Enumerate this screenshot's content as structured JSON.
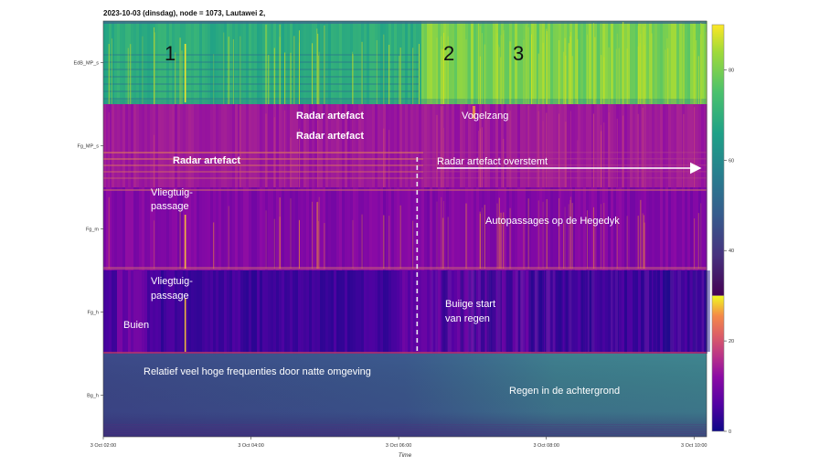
{
  "chart_data": {
    "type": "heatmap",
    "title": "2023-10-03 (dinsdag), node = 1073, Lautawei 2,",
    "xlabel": "Time",
    "ylabel": "",
    "x_ticks": [
      "3 Oct 02:00",
      "3 Oct 04:00",
      "3 Oct 06:00",
      "3 Oct 08:00",
      "3 Oct 10:00"
    ],
    "x_range_hours": [
      2.0,
      10.2
    ],
    "rows": [
      {
        "name": "EdB_MP_s",
        "colormap": "viridis",
        "base_level": 68,
        "variability": "high after 06:30"
      },
      {
        "name": "Fg_MP_s",
        "colormap": "plasma",
        "base_level": 12
      },
      {
        "name": "Fg_m",
        "colormap": "plasma",
        "base_level": 8
      },
      {
        "name": "Fg_h",
        "colormap": "plasma",
        "base_level": 4
      },
      {
        "name": "Bg_h",
        "colormap": "viridis",
        "base_level": 42
      }
    ],
    "colorbar": {
      "ticks": [
        0,
        20,
        40,
        60,
        80
      ],
      "range": [
        0,
        90
      ],
      "split_at": 30,
      "lower_colormap": "plasma",
      "upper_colormap": "viridis"
    },
    "annotations": [
      {
        "text": "1",
        "style": "number",
        "time": 3.1,
        "row": "EdB_MP_s"
      },
      {
        "text": "2",
        "style": "number",
        "time": 6.35,
        "row": "EdB_MP_s"
      },
      {
        "text": "3",
        "style": "number",
        "time": 7.0,
        "row": "EdB_MP_s"
      },
      {
        "text": "Radar artefact",
        "style": "bold",
        "time": 4.9,
        "row": "Fg_MP_s",
        "pos": "top"
      },
      {
        "text": "Radar artefact",
        "style": "bold",
        "time": 4.9,
        "row": "Fg_MP_s",
        "pos": "mid"
      },
      {
        "text": "Radar artefact",
        "style": "bold",
        "time": 3.3,
        "row": "Fg_MP_s",
        "pos": "low"
      },
      {
        "text": "Vogelzang",
        "style": "normal",
        "time": 6.9,
        "row": "Fg_MP_s"
      },
      {
        "text": "Radar artefact overstemt",
        "style": "normal",
        "time": 6.3,
        "row": "Fg_MP_s",
        "arrow": true
      },
      {
        "text": "Vliegtuig-",
        "style": "normal",
        "time": 3.3,
        "row": "Fg_m",
        "line": 1
      },
      {
        "text": "passage",
        "style": "normal",
        "time": 3.3,
        "row": "Fg_m",
        "line": 2
      },
      {
        "text": "Autopassages op de Hegedyk",
        "style": "normal",
        "time": 8.2,
        "row": "Fg_m"
      },
      {
        "text": "Vliegtuig-",
        "style": "normal",
        "time": 3.3,
        "row": "Fg_h",
        "line": 1
      },
      {
        "text": "passage",
        "style": "normal",
        "time": 3.3,
        "row": "Fg_h",
        "line": 2
      },
      {
        "text": "Buien",
        "style": "normal",
        "time": 2.3,
        "row": "Fg_h"
      },
      {
        "text": "Buiige start",
        "style": "normal",
        "time": 6.2,
        "row": "Fg_h",
        "line": 1
      },
      {
        "text": "van regen",
        "style": "normal",
        "time": 6.2,
        "row": "Fg_h",
        "line": 2
      },
      {
        "text": "Relatief veel hoge frequenties door natte omgeving",
        "style": "normal",
        "time": 4.0,
        "row": "Bg_h"
      },
      {
        "text": "Regen in de achtergrond",
        "style": "normal",
        "time": 8.5,
        "row": "Bg_h"
      }
    ],
    "events": {
      "vertical_dashed_line_time": 6.25,
      "aircraft_time": 3.1
    }
  }
}
